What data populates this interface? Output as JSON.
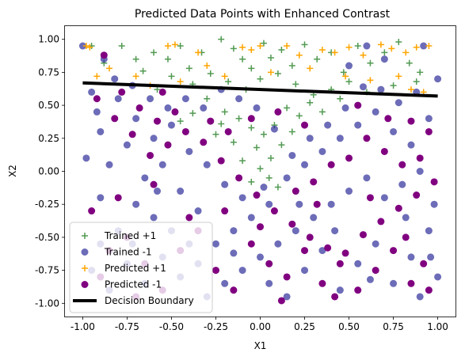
{
  "chart_data": {
    "type": "scatter",
    "title": "Predicted Data Points with Enhanced Contrast",
    "xlabel": "X1",
    "ylabel": "X2",
    "xlim": [
      -1.1,
      1.1
    ],
    "ylim": [
      -1.1,
      1.1
    ],
    "x_ticks": [
      "-1.00",
      "-0.75",
      "-0.50",
      "-0.25",
      "0.00",
      "0.25",
      "0.50",
      "0.75",
      "1.00"
    ],
    "y_ticks": [
      "-1.00",
      "-0.75",
      "-0.50",
      "-0.25",
      "0.00",
      "0.25",
      "0.50",
      "0.75",
      "1.00"
    ],
    "x_tick_values": [
      -1,
      -0.75,
      -0.5,
      -0.25,
      0,
      0.25,
      0.5,
      0.75,
      1
    ],
    "y_tick_values": [
      -1,
      -0.75,
      -0.5,
      -0.25,
      0,
      0.25,
      0.5,
      0.75,
      1
    ],
    "grid": false,
    "legend_position": "lower-left",
    "colors": {
      "trained_pos": "#3f8f3f",
      "trained_neg": "#2e2e9a",
      "predicted_pos": "#ffa500",
      "predicted_neg": "#800080",
      "boundary": "#000000"
    },
    "decision_boundary": {
      "x": [
        -1.0,
        1.0
      ],
      "y": [
        0.67,
        0.57
      ]
    },
    "series": [
      {
        "name": "Trained +1",
        "marker": "plus",
        "points": [
          [
            -0.95,
            0.95
          ],
          [
            -0.78,
            0.95
          ],
          [
            -0.66,
            0.76
          ],
          [
            -0.6,
            0.9
          ],
          [
            -0.52,
            0.85
          ],
          [
            -0.45,
            0.95
          ],
          [
            -0.4,
            0.78
          ],
          [
            -0.33,
            0.9
          ],
          [
            -0.22,
            1.0
          ],
          [
            -0.15,
            0.93
          ],
          [
            -0.1,
            0.85
          ],
          [
            -0.05,
            0.78
          ],
          [
            0.02,
            0.97
          ],
          [
            0.06,
            0.86
          ],
          [
            0.12,
            0.92
          ],
          [
            0.18,
            0.8
          ],
          [
            0.25,
            0.96
          ],
          [
            0.32,
            0.85
          ],
          [
            0.4,
            0.9
          ],
          [
            0.47,
            0.75
          ],
          [
            0.55,
            0.95
          ],
          [
            0.62,
            0.82
          ],
          [
            0.7,
            0.9
          ],
          [
            0.78,
            0.98
          ],
          [
            0.84,
            0.82
          ],
          [
            0.9,
            0.75
          ],
          [
            -0.88,
            0.82
          ],
          [
            -0.7,
            0.85
          ],
          [
            -0.5,
            0.72
          ],
          [
            -0.38,
            0.66
          ],
          [
            -0.28,
            0.74
          ],
          [
            -0.18,
            0.68
          ],
          [
            -0.08,
            0.62
          ],
          [
            0.0,
            0.7
          ],
          [
            0.1,
            0.74
          ],
          [
            0.2,
            0.66
          ],
          [
            0.3,
            0.58
          ],
          [
            0.4,
            0.62
          ],
          [
            0.5,
            0.68
          ],
          [
            0.6,
            0.6
          ],
          [
            -0.3,
            0.55
          ],
          [
            -0.2,
            0.45
          ],
          [
            -0.12,
            0.4
          ],
          [
            -0.05,
            0.33
          ],
          [
            0.02,
            0.28
          ],
          [
            0.08,
            0.35
          ],
          [
            0.15,
            0.48
          ],
          [
            0.22,
            0.42
          ],
          [
            -0.25,
            0.28
          ],
          [
            -0.15,
            0.22
          ],
          [
            -0.02,
            0.18
          ],
          [
            0.06,
            0.1
          ],
          [
            0.12,
            0.2
          ],
          [
            -0.38,
            0.44
          ],
          [
            -0.45,
            0.38
          ],
          [
            0.28,
            0.52
          ],
          [
            0.35,
            0.45
          ],
          [
            -0.1,
            0.08
          ],
          [
            0.0,
            0.02
          ],
          [
            0.05,
            -0.05
          ],
          [
            0.1,
            -0.12
          ],
          [
            -0.05,
            -0.08
          ],
          [
            0.18,
            0.3
          ],
          [
            -0.22,
            0.36
          ],
          [
            0.45,
            0.55
          ],
          [
            -0.58,
            0.62
          ],
          [
            0.75,
            0.65
          ],
          [
            0.88,
            0.68
          ]
        ]
      },
      {
        "name": "Trained -1",
        "marker": "circle",
        "points": [
          [
            -1.0,
            0.95
          ],
          [
            -0.88,
            0.85
          ],
          [
            -0.95,
            0.6
          ],
          [
            -0.8,
            0.55
          ],
          [
            -0.7,
            0.4
          ],
          [
            -0.9,
            0.3
          ],
          [
            -0.75,
            0.2
          ],
          [
            -0.6,
            0.25
          ],
          [
            -0.5,
            0.35
          ],
          [
            -0.4,
            0.15
          ],
          [
            -0.85,
            0.05
          ],
          [
            -0.65,
            -0.05
          ],
          [
            -0.55,
            0.05
          ],
          [
            -0.45,
            -0.15
          ],
          [
            -0.3,
            0.05
          ],
          [
            -0.2,
            -0.1
          ],
          [
            -0.1,
            -0.2
          ],
          [
            0.05,
            -0.25
          ],
          [
            0.15,
            -0.05
          ],
          [
            0.25,
            0.05
          ],
          [
            0.35,
            0.15
          ],
          [
            0.45,
            0.25
          ],
          [
            0.55,
            0.35
          ],
          [
            0.65,
            0.45
          ],
          [
            0.75,
            0.3
          ],
          [
            0.85,
            0.2
          ],
          [
            0.95,
            0.4
          ],
          [
            0.9,
            0.0
          ],
          [
            0.8,
            -0.1
          ],
          [
            0.7,
            -0.2
          ],
          [
            0.6,
            -0.05
          ],
          [
            0.5,
            -0.15
          ],
          [
            0.4,
            -0.25
          ],
          [
            0.3,
            -0.35
          ],
          [
            0.2,
            -0.45
          ],
          [
            0.1,
            -0.55
          ],
          [
            0.0,
            -0.65
          ],
          [
            -0.1,
            -0.75
          ],
          [
            -0.2,
            -0.85
          ],
          [
            -0.3,
            -0.95
          ],
          [
            -0.4,
            -0.55
          ],
          [
            -0.5,
            -0.45
          ],
          [
            -0.6,
            -0.35
          ],
          [
            -0.7,
            -0.25
          ],
          [
            -0.8,
            -0.45
          ],
          [
            -0.9,
            -0.55
          ],
          [
            -0.95,
            -0.75
          ],
          [
            -0.85,
            -0.9
          ],
          [
            -0.75,
            -0.7
          ],
          [
            -0.65,
            -0.85
          ],
          [
            -0.55,
            -0.65
          ],
          [
            -0.45,
            -0.8
          ],
          [
            -0.35,
            -0.7
          ],
          [
            -0.25,
            -0.55
          ],
          [
            -0.15,
            -0.45
          ],
          [
            -0.05,
            -0.35
          ],
          [
            0.05,
            -0.85
          ],
          [
            0.15,
            -0.95
          ],
          [
            0.25,
            -0.75
          ],
          [
            0.35,
            -0.6
          ],
          [
            0.45,
            -0.9
          ],
          [
            0.55,
            -0.7
          ],
          [
            0.65,
            -0.55
          ],
          [
            0.75,
            -0.85
          ],
          [
            0.85,
            -0.65
          ],
          [
            0.95,
            -0.45
          ],
          [
            0.9,
            -0.95
          ],
          [
            1.0,
            -0.8
          ],
          [
            0.98,
            -0.25
          ],
          [
            0.88,
            0.6
          ],
          [
            0.78,
            0.52
          ],
          [
            0.68,
            0.62
          ],
          [
            0.58,
            0.64
          ],
          [
            0.48,
            0.48
          ],
          [
            0.38,
            0.35
          ],
          [
            0.28,
            0.25
          ],
          [
            0.18,
            0.12
          ],
          [
            0.08,
            0.32
          ],
          [
            -0.02,
            0.48
          ],
          [
            -0.12,
            0.55
          ],
          [
            -0.22,
            0.62
          ],
          [
            -0.32,
            0.48
          ],
          [
            -0.42,
            0.55
          ],
          [
            -0.52,
            0.48
          ],
          [
            -0.62,
            0.55
          ],
          [
            -0.72,
            0.65
          ],
          [
            -0.82,
            0.7
          ],
          [
            -0.92,
            0.45
          ],
          [
            -0.98,
            0.1
          ],
          [
            -0.9,
            -0.2
          ],
          [
            -0.72,
            -0.55
          ],
          [
            -0.58,
            -0.15
          ],
          [
            -0.35,
            -0.3
          ],
          [
            -0.15,
            -0.62
          ],
          [
            0.02,
            -0.12
          ],
          [
            0.22,
            -0.25
          ],
          [
            0.42,
            -0.45
          ],
          [
            0.62,
            -0.82
          ],
          [
            0.82,
            -0.35
          ],
          [
            0.96,
            -0.65
          ],
          [
            0.7,
            0.85
          ],
          [
            0.92,
            0.95
          ],
          [
            1.0,
            0.7
          ],
          [
            0.6,
            0.95
          ],
          [
            0.5,
            0.8
          ]
        ]
      },
      {
        "name": "Predicted +1",
        "marker": "plus",
        "points": [
          [
            -0.98,
            0.95
          ],
          [
            -0.96,
            0.94
          ],
          [
            -0.52,
            0.95
          ],
          [
            -0.48,
            0.96
          ],
          [
            -0.35,
            0.9
          ],
          [
            -0.1,
            0.94
          ],
          [
            -0.05,
            0.92
          ],
          [
            0.0,
            0.95
          ],
          [
            0.15,
            0.95
          ],
          [
            0.22,
            0.88
          ],
          [
            0.35,
            0.92
          ],
          [
            0.42,
            0.9
          ],
          [
            0.5,
            0.94
          ],
          [
            0.58,
            0.88
          ],
          [
            0.68,
            0.96
          ],
          [
            0.74,
            0.93
          ],
          [
            0.82,
            0.9
          ],
          [
            0.88,
            0.94
          ],
          [
            0.95,
            0.95
          ],
          [
            -0.7,
            0.72
          ],
          [
            -0.62,
            0.65
          ],
          [
            -0.45,
            0.68
          ],
          [
            -0.2,
            0.72
          ],
          [
            0.06,
            0.75
          ],
          [
            0.28,
            0.78
          ],
          [
            0.48,
            0.72
          ],
          [
            0.62,
            0.69
          ],
          [
            0.78,
            0.72
          ],
          [
            0.85,
            0.62
          ],
          [
            0.92,
            0.6
          ],
          [
            -0.92,
            0.72
          ],
          [
            -0.85,
            0.78
          ],
          [
            -0.3,
            0.8
          ]
        ]
      },
      {
        "name": "Predicted -1",
        "marker": "circle",
        "points": [
          [
            -0.92,
            0.55
          ],
          [
            -0.82,
            0.4
          ],
          [
            -0.72,
            0.28
          ],
          [
            -0.62,
            0.12
          ],
          [
            -0.52,
            0.2
          ],
          [
            -0.42,
            0.3
          ],
          [
            -0.32,
            0.22
          ],
          [
            -0.22,
            0.08
          ],
          [
            -0.12,
            -0.05
          ],
          [
            -0.02,
            -0.18
          ],
          [
            0.08,
            -0.3
          ],
          [
            0.18,
            -0.4
          ],
          [
            0.28,
            -0.5
          ],
          [
            0.38,
            -0.58
          ],
          [
            0.48,
            -0.62
          ],
          [
            0.58,
            -0.48
          ],
          [
            0.68,
            -0.38
          ],
          [
            0.78,
            -0.28
          ],
          [
            0.88,
            -0.18
          ],
          [
            0.98,
            -0.08
          ],
          [
            -0.95,
            -0.3
          ],
          [
            -0.85,
            -0.6
          ],
          [
            -0.75,
            -0.5
          ],
          [
            -0.65,
            -0.7
          ],
          [
            -0.55,
            -0.9
          ],
          [
            -0.45,
            -0.6
          ],
          [
            -0.35,
            -0.45
          ],
          [
            -0.25,
            -0.75
          ],
          [
            -0.15,
            -0.9
          ],
          [
            -0.05,
            -0.55
          ],
          [
            0.05,
            -0.7
          ],
          [
            0.15,
            -0.8
          ],
          [
            0.25,
            -0.6
          ],
          [
            0.35,
            -0.85
          ],
          [
            0.45,
            -0.7
          ],
          [
            0.55,
            -0.9
          ],
          [
            0.65,
            -0.75
          ],
          [
            0.75,
            -0.6
          ],
          [
            0.85,
            -0.85
          ],
          [
            0.95,
            -0.9
          ],
          [
            0.9,
            0.1
          ],
          [
            0.8,
            0.05
          ],
          [
            0.7,
            0.15
          ],
          [
            0.6,
            0.25
          ],
          [
            0.5,
            0.1
          ],
          [
            0.4,
            0.05
          ],
          [
            0.3,
            -0.08
          ],
          [
            0.2,
            -0.15
          ],
          [
            0.1,
            0.45
          ],
          [
            -0.05,
            0.4
          ],
          [
            -0.18,
            0.3
          ],
          [
            -0.28,
            0.38
          ],
          [
            -0.48,
            0.45
          ],
          [
            -0.58,
            0.38
          ],
          [
            -0.68,
            0.48
          ],
          [
            -0.78,
            0.6
          ],
          [
            -0.88,
            0.88
          ],
          [
            -0.55,
            0.6
          ],
          [
            0.25,
            0.35
          ],
          [
            0.55,
            0.5
          ],
          [
            0.72,
            0.4
          ],
          [
            0.85,
            0.38
          ],
          [
            0.95,
            0.3
          ],
          [
            -0.8,
            -0.2
          ],
          [
            -0.6,
            -0.1
          ],
          [
            -0.4,
            -0.35
          ],
          [
            -0.2,
            -0.3
          ],
          [
            0.0,
            -0.42
          ],
          [
            0.32,
            -0.25
          ],
          [
            0.62,
            -0.2
          ],
          [
            0.82,
            -0.5
          ],
          [
            0.92,
            -0.7
          ],
          [
            -0.9,
            -0.8
          ],
          [
            -0.7,
            -0.95
          ],
          [
            0.12,
            -0.98
          ],
          [
            0.42,
            -0.95
          ]
        ]
      }
    ]
  }
}
